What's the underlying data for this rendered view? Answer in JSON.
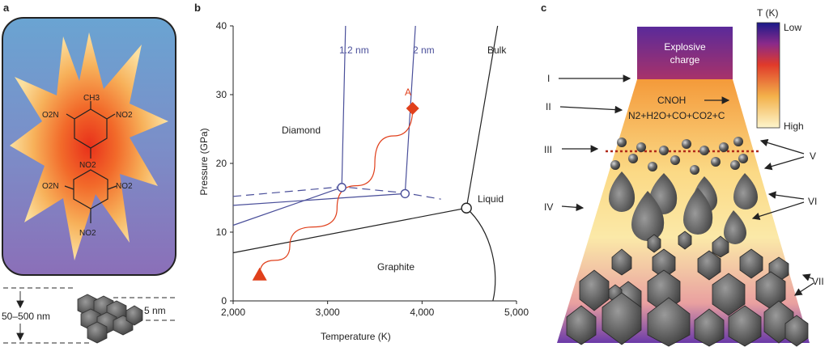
{
  "panel_a": {
    "letter": "a",
    "molecule": {
      "ch3": "CH3",
      "no2_left_top": "O2N",
      "no2_right_top": "NO2",
      "no2_center": "NO2",
      "no2_left_bot": "O2N",
      "no2_right_bot": "NO2",
      "no2_bottom": "NO2"
    },
    "size_label": "50–500 nm",
    "particle_label": "5 nm"
  },
  "panel_b": {
    "letter": "b",
    "regions": {
      "diamond": "Diamond",
      "graphite": "Graphite",
      "liquid": "Liquid"
    },
    "curve_labels": {
      "nm12": "1.2 nm",
      "nm2": "2 nm",
      "bulk": "Bulk",
      "point_a": "A"
    },
    "colors": {
      "nano": "#4a4f9a",
      "bulk": "#222222",
      "path": "#e0401c"
    }
  },
  "panel_c": {
    "letter": "c",
    "charge_label_1": "Explosive",
    "charge_label_2": "charge",
    "reaction_1": "CNOH",
    "reaction_2": "N2+H2O+CO+CO2+C",
    "colorbar_title": "T (K)",
    "colorbar_low": "Low",
    "colorbar_high": "High",
    "stages": [
      "I",
      "II",
      "III",
      "IV",
      "V",
      "VI",
      "VII"
    ]
  },
  "chart_data": {
    "type": "line",
    "xlabel": "Temperature (K)",
    "ylabel": "Pressure (GPa)",
    "xlim": [
      2000,
      5000
    ],
    "ylim": [
      0,
      40
    ],
    "xticks": [
      "2,000",
      "3,000",
      "4,000",
      "5,000"
    ],
    "yticks": [
      "0",
      "10",
      "20",
      "30",
      "40"
    ],
    "series": [
      {
        "name": "Bulk",
        "x": [
          2000,
          4470,
          4800
        ],
        "y": [
          7,
          13.5,
          40
        ]
      },
      {
        "name": "2 nm",
        "x": [
          2000,
          3820,
          3930
        ],
        "y": [
          13.9,
          15.6,
          40
        ]
      },
      {
        "name": "1.2 nm",
        "x": [
          2000,
          3150,
          3190
        ],
        "y": [
          11,
          16.5,
          40
        ]
      },
      {
        "x": [
          2280,
          2600,
          3100,
          3500,
          3900
        ],
        "y": [
          3.8,
          8,
          13.5,
          20,
          28
        ]
      }
    ],
    "points": [
      {
        "x": 3150,
        "y": 16.5
      },
      {
        "x": 3820,
        "y": 15.6
      },
      {
        "x": 4470,
        "y": 13.5
      },
      {
        "x": 3900,
        "y": 28
      },
      {
        "x": 2280,
        "y": 3.8
      }
    ]
  }
}
